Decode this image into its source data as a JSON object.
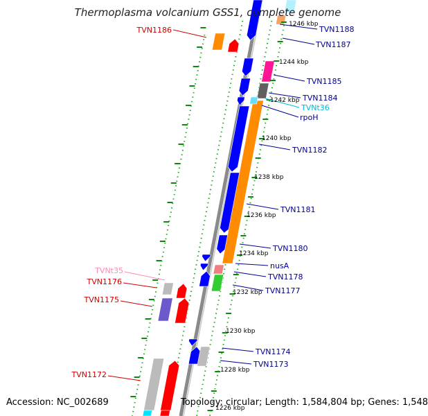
{
  "title": "Thermoplasma volcanium GSS1, complete genome",
  "accession_text": "Accession: NC_002689",
  "topology_text": "Topology: circular; Length: 1,584,804 bp; Genes: 1,548",
  "colors": {
    "background": "#ffffff",
    "backbone": "#8a8a8a",
    "forward_cds": "#0000ff",
    "reverse_cds": "#ff0000",
    "orange_cds": "#ff8c00",
    "pink_cds": "#ff1493",
    "dark_gray_cds": "#606060",
    "light_gray_cds": "#bbbbbb",
    "violet_cds": "#6a5acd",
    "cyan_rna": "#00e5ff",
    "salmon_cds": "#f08080",
    "green_cds": "#33cc33",
    "tick_green": "#006400",
    "label_blue": "#00008b",
    "label_red": "#cc0000",
    "label_cyan": "#00bcd4",
    "label_pink": "#ff88bb"
  },
  "scale_labels": [
    "1246 kbp",
    "1244 kbp",
    "1242 kbp",
    "1240 kbp",
    "1238 kbp",
    "1236 kbp",
    "1234 kbp",
    "1232 kbp",
    "1230 kbp",
    "1228 kbp",
    "1226 kbp"
  ],
  "feature_labels": [
    {
      "text": "TVN1188",
      "color": "#00008b"
    },
    {
      "text": "TVN1187",
      "color": "#00008b"
    },
    {
      "text": "TVN1186",
      "color": "#cc0000"
    },
    {
      "text": "TVN1185",
      "color": "#00008b"
    },
    {
      "text": "TVN1184",
      "color": "#00008b"
    },
    {
      "text": "TVNt36",
      "color": "#00bcd4"
    },
    {
      "text": "rpoH",
      "color": "#00008b"
    },
    {
      "text": "TVN1182",
      "color": "#00008b"
    },
    {
      "text": "TVN1181",
      "color": "#00008b"
    },
    {
      "text": "TVN1180",
      "color": "#00008b"
    },
    {
      "text": "nusA",
      "color": "#00008b"
    },
    {
      "text": "TVN1178",
      "color": "#00008b"
    },
    {
      "text": "TVN1177",
      "color": "#00008b"
    },
    {
      "text": "TVNt35",
      "color": "#ff88bb"
    },
    {
      "text": "TVN1176",
      "color": "#cc0000"
    },
    {
      "text": "TVN1175",
      "color": "#cc0000"
    },
    {
      "text": "TVN1174",
      "color": "#00008b"
    },
    {
      "text": "TVN1173",
      "color": "#00008b"
    },
    {
      "text": "TVN1172",
      "color": "#cc0000"
    }
  ]
}
